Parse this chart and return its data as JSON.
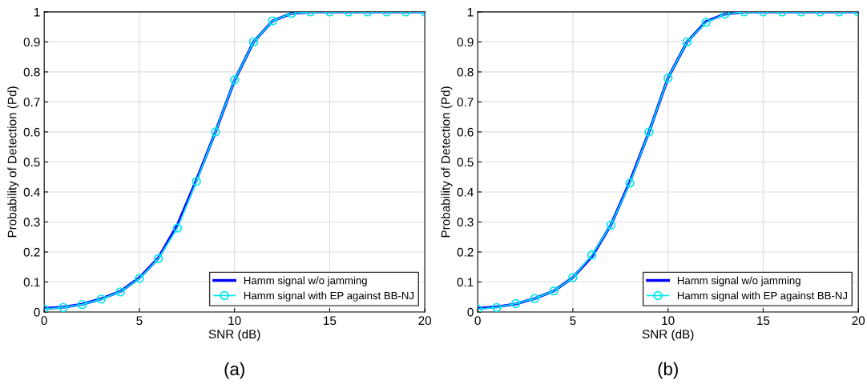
{
  "chart_data": [
    {
      "type": "line",
      "xlabel": "SNR (dB)",
      "ylabel": "Probability of Detection (Pd)",
      "x": [
        0,
        1,
        2,
        3,
        4,
        5,
        6,
        7,
        8,
        9,
        10,
        11,
        12,
        13,
        14,
        15,
        16,
        17,
        18,
        19,
        20
      ],
      "xlim": [
        0,
        20
      ],
      "xticks": [
        0,
        5,
        10,
        15,
        20
      ],
      "ylim": [
        0,
        1
      ],
      "yticks": [
        0,
        0.1,
        0.2,
        0.3,
        0.4,
        0.5,
        0.6,
        0.7,
        0.8,
        0.9,
        1
      ],
      "grid": true,
      "legend": "bottom right",
      "annotations": [
        "(a)"
      ],
      "series": [
        {
          "name": "Hamm signal w/o jamming",
          "color": "#0000ff",
          "marker": "none",
          "values": [
            0.012,
            0.016,
            0.026,
            0.044,
            0.068,
            0.114,
            0.18,
            0.29,
            0.44,
            0.6,
            0.772,
            0.9,
            0.97,
            0.995,
            1,
            1,
            1,
            1,
            1,
            1,
            1
          ]
        },
        {
          "name": "Hamm signal with EP against BB-NJ",
          "color": "#00e5ee",
          "marker": "circle",
          "values": [
            0.01,
            0.015,
            0.025,
            0.043,
            0.067,
            0.112,
            0.178,
            0.28,
            0.435,
            0.6,
            0.773,
            0.9,
            0.97,
            0.995,
            1,
            1,
            1,
            1,
            1,
            1,
            1
          ]
        }
      ]
    },
    {
      "type": "line",
      "xlabel": "SNR (dB)",
      "ylabel": "Probability of Detection (Pd)",
      "x": [
        0,
        1,
        2,
        3,
        4,
        5,
        6,
        7,
        8,
        9,
        10,
        11,
        12,
        13,
        14,
        15,
        16,
        17,
        18,
        19,
        20
      ],
      "xlim": [
        0,
        20
      ],
      "xticks": [
        0,
        5,
        10,
        15,
        20
      ],
      "ylim": [
        0,
        1
      ],
      "yticks": [
        0,
        0.1,
        0.2,
        0.3,
        0.4,
        0.5,
        0.6,
        0.7,
        0.8,
        0.9,
        1
      ],
      "grid": true,
      "legend": "bottom right",
      "annotations": [
        "(b)"
      ],
      "series": [
        {
          "name": "Hamm signal w/o jamming",
          "color": "#0000ff",
          "marker": "none",
          "values": [
            0.012,
            0.017,
            0.027,
            0.045,
            0.07,
            0.115,
            0.185,
            0.29,
            0.435,
            0.6,
            0.78,
            0.9,
            0.968,
            0.993,
            1,
            1,
            1,
            1,
            1,
            1,
            1
          ]
        },
        {
          "name": "Hamm signal with EP against BB-NJ",
          "color": "#00e5ee",
          "marker": "circle",
          "values": [
            0.01,
            0.015,
            0.028,
            0.045,
            0.07,
            0.115,
            0.19,
            0.29,
            0.43,
            0.6,
            0.78,
            0.9,
            0.965,
            0.993,
            1,
            1,
            1,
            1,
            1,
            1,
            1
          ]
        }
      ]
    }
  ]
}
